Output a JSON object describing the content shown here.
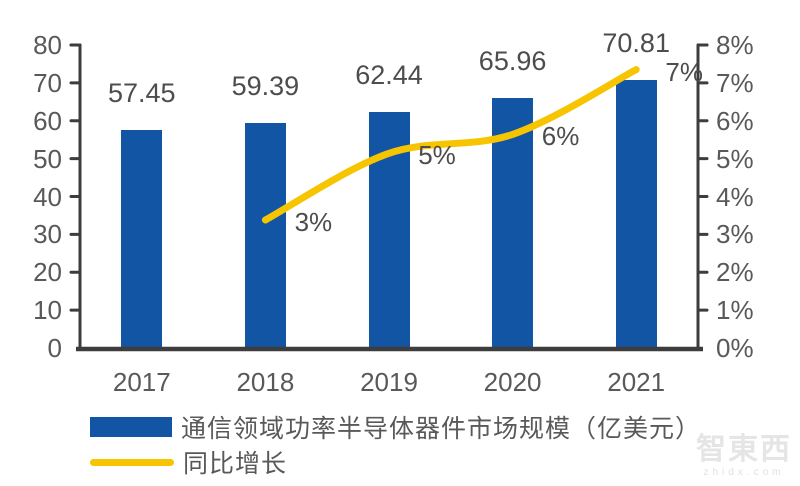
{
  "colors": {
    "bar": "#1155A4",
    "line": "#F7C500",
    "axis": "#3d3d3d",
    "axis_text": "#595959",
    "value_text": "#4d4d4d"
  },
  "chart_data": {
    "type": "bar",
    "title": "",
    "categories": [
      "2017",
      "2018",
      "2019",
      "2020",
      "2021"
    ],
    "series": [
      {
        "name": "通信领域功率半导体器件市场规模（亿美元）",
        "type": "bar",
        "axis": "left",
        "values": [
          57.45,
          59.39,
          62.44,
          65.96,
          70.81
        ],
        "labels": [
          "57.45",
          "59.39",
          "62.44",
          "65.96",
          "70.81"
        ]
      },
      {
        "name": "同比增长",
        "type": "line",
        "axis": "right",
        "values": [
          null,
          3.38,
          5.14,
          5.64,
          7.35
        ],
        "labels": [
          "",
          "3%",
          "5%",
          "6%",
          "7%"
        ]
      }
    ],
    "left_axis": {
      "min": 0,
      "max": 80,
      "step": 10,
      "tick_labels": [
        "0",
        "10",
        "20",
        "30",
        "40",
        "50",
        "60",
        "70",
        "80"
      ]
    },
    "right_axis": {
      "min": 0,
      "max": 8,
      "step": 1,
      "tick_labels": [
        "0%",
        "1%",
        "2%",
        "3%",
        "4%",
        "5%",
        "6%",
        "7%",
        "8%"
      ]
    },
    "grid": false,
    "legend_position": "bottom-left",
    "legend": [
      {
        "label": "通信领域功率半导体器件市场规模（亿美元）",
        "swatch": "bar"
      },
      {
        "label": "同比增长",
        "swatch": "line"
      }
    ]
  },
  "watermark": {
    "logo": "智東西",
    "domain": "zhidx.com"
  }
}
